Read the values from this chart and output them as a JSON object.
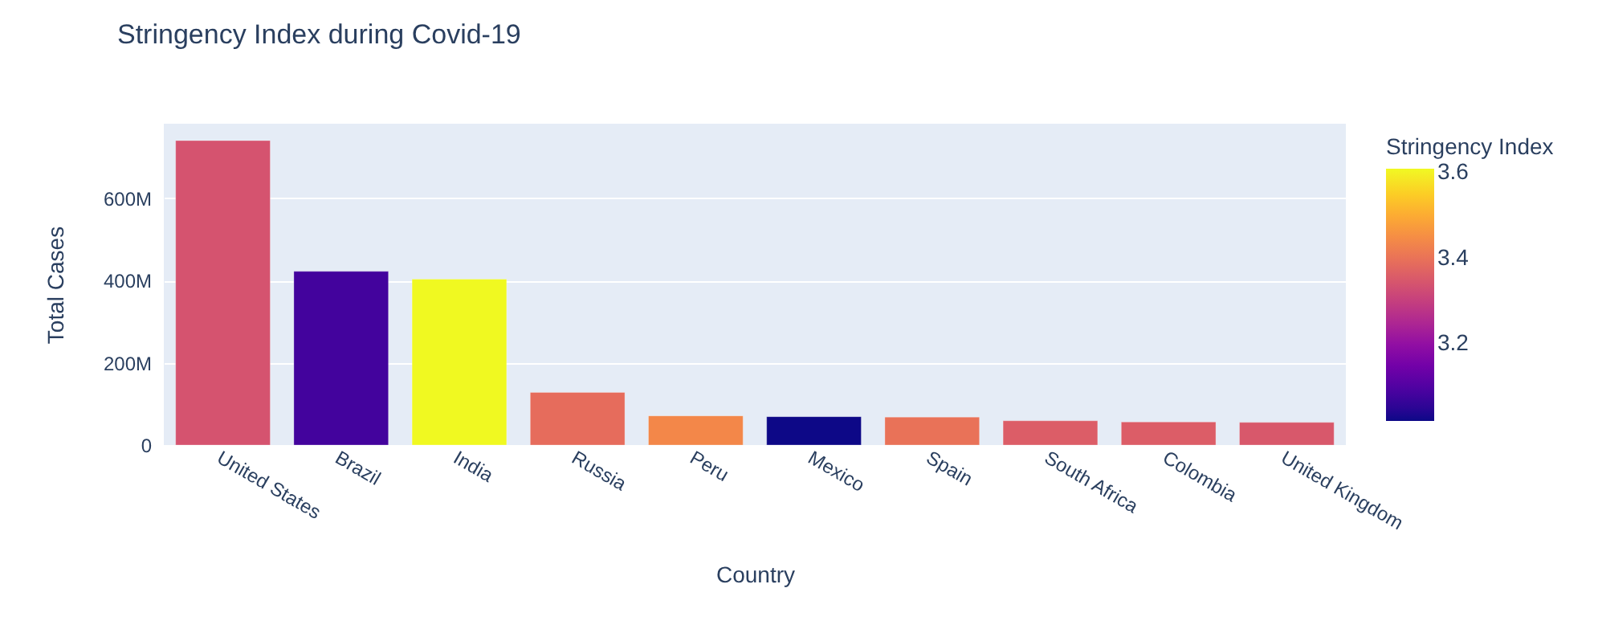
{
  "chart_data": {
    "type": "bar",
    "title": "Stringency Index during Covid-19",
    "xlabel": "Country",
    "ylabel": "Total Cases",
    "legend_title": "Stringency Index",
    "categories": [
      "United States",
      "Brazil",
      "India",
      "Russia",
      "Peru",
      "Mexico",
      "Spain",
      "South Africa",
      "Colombia",
      "United Kingdom"
    ],
    "values": [
      740000000,
      422000000,
      403000000,
      128000000,
      71000000,
      69000000,
      68000000,
      59000000,
      56000000,
      55000000
    ],
    "cvalues": [
      3.34,
      3.08,
      3.61,
      3.39,
      3.44,
      3.02,
      3.4,
      3.36,
      3.36,
      3.35
    ],
    "clim": [
      3.02,
      3.61
    ],
    "cticks": [
      3.2,
      3.4,
      3.6
    ],
    "ylim": [
      0,
      781000000
    ],
    "yticks": [
      0,
      {
        "value": 200000000,
        "label": "200M"
      },
      {
        "value": 400000000,
        "label": "400M"
      },
      {
        "value": 600000000,
        "label": "600M"
      }
    ],
    "grid": "y"
  }
}
